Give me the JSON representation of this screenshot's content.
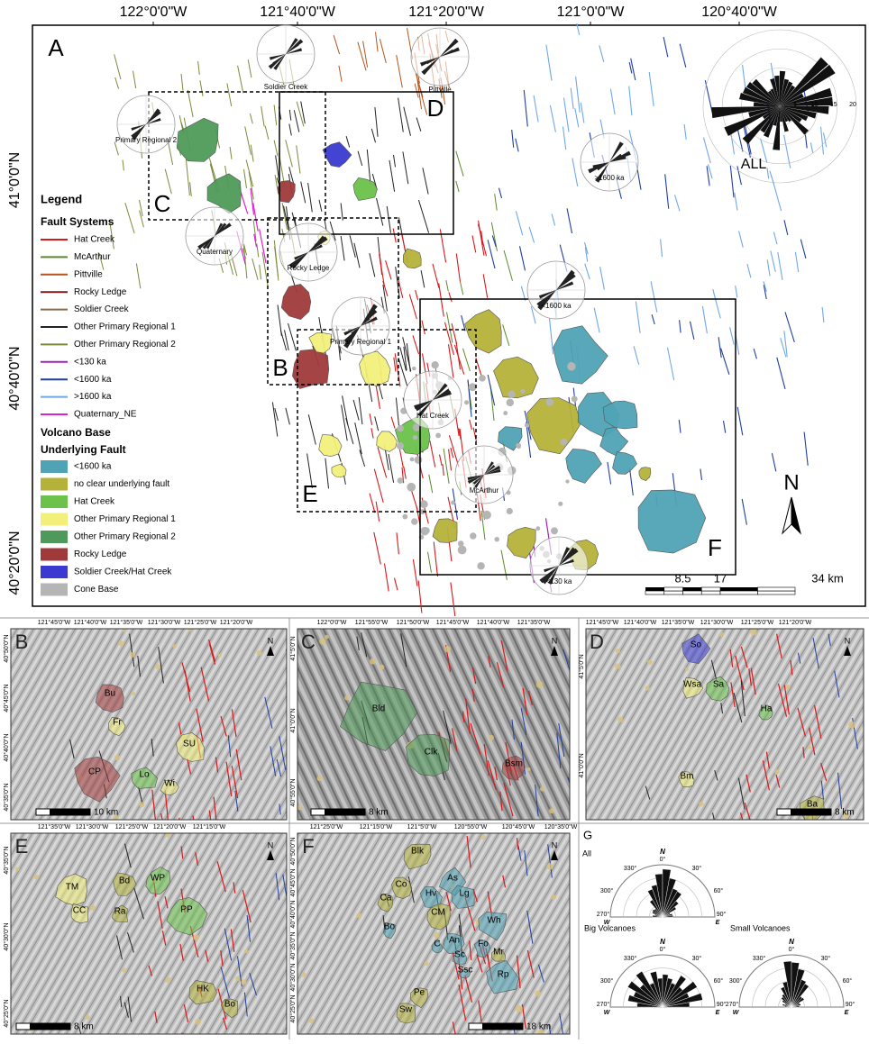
{
  "panel_a": {
    "label": "A",
    "lon_labels": [
      "122°0'0\"W",
      "121°40'0\"W",
      "121°20'0\"W",
      "121°0'0\"W",
      "120°40'0\"W"
    ],
    "lat_labels": [
      "41°0'0\"N",
      "40°40'0\"N",
      "40°20'0\"N"
    ],
    "box_labels": [
      "C",
      "D",
      "B",
      "E",
      "F"
    ],
    "rose_labels": [
      "Soldier Creek",
      "Pittville",
      "Primary Regional 2",
      ">1600 ka",
      "Quaternary",
      "Rocky Ledge",
      "<1600 ka",
      "Primary Regional 1",
      "Hat Creek",
      "McArthur",
      "<130 ka"
    ],
    "rose_all": {
      "label": "ALL",
      "ticks": [
        "5",
        "10",
        "15",
        "20"
      ]
    },
    "north": "N",
    "scale_labels": [
      "8.5",
      "17",
      "34 km"
    ],
    "legend": {
      "title": "Legend",
      "fault_heading": "Fault Systems",
      "faults": [
        {
          "name": "Hat Creek",
          "color": "#d7191c"
        },
        {
          "name": "McArthur",
          "color": "#5a8a2a"
        },
        {
          "name": "Pittville",
          "color": "#b5541c"
        },
        {
          "name": "Rocky Ledge",
          "color": "#7a1a1a"
        },
        {
          "name": "Soldier Creek",
          "color": "#8a6a4a"
        },
        {
          "name": "Other Primary Regional 1",
          "color": "#222222"
        },
        {
          "name": "Other Primary Regional 2",
          "color": "#7a8a3a"
        },
        {
          "name": "<130 ka",
          "color": "#a020c0"
        },
        {
          "name": "<1600 ka",
          "color": "#1f3f9f"
        },
        {
          "name": ">1600 ka",
          "color": "#6fa8e8"
        },
        {
          "name": "Quaternary_NE",
          "color": "#e020d0"
        }
      ],
      "volcano_heading": "Volcano Base",
      "underlying_heading": "Underlying Fault",
      "volcanoes": [
        {
          "name": "<1600 ka",
          "color": "#4fa3b5"
        },
        {
          "name": "no clear underlying fault",
          "color": "#b5b23a"
        },
        {
          "name": "Hat Creek",
          "color": "#6cc24a"
        },
        {
          "name": "Other Primary Regional 1",
          "color": "#f2f07a"
        },
        {
          "name": "Other Primary Regional 2",
          "color": "#4f9a5a"
        },
        {
          "name": "Rocky Ledge",
          "color": "#a03a3a"
        },
        {
          "name": "Soldier Creek/Hat Creek",
          "color": "#3a3ad0"
        },
        {
          "name": "Cone Base",
          "color": "#b5b5b5"
        }
      ]
    }
  },
  "panel_b": {
    "label": "B",
    "north": "N",
    "scale": "10 km",
    "lon_labels": [
      "121°45'0\"W",
      "121°40'0\"W",
      "121°35'0\"W",
      "121°30'0\"W",
      "121°25'0\"W",
      "121°20'0\"W"
    ],
    "lat_labels": [
      "40°50'0\"N",
      "40°45'0\"N",
      "40°40'0\"N",
      "40°35'0\"N"
    ],
    "volcanoes": [
      "Bu",
      "Fr",
      "SU",
      "CP",
      "Lo",
      "Wi"
    ]
  },
  "panel_c": {
    "label": "C",
    "north": "N",
    "scale": "8 km",
    "lon_labels": [
      "122°0'0\"W",
      "121°55'0\"W",
      "121°50'0\"W",
      "121°45'0\"W",
      "121°40'0\"W",
      "121°35'0\"W"
    ],
    "lat_labels": [
      "41°5'0\"N",
      "41°0'0\"N",
      "40°55'0\"N"
    ],
    "volcanoes": [
      "Bld",
      "Clk",
      "Bsm"
    ]
  },
  "panel_d": {
    "label": "D",
    "north": "N",
    "scale": "8 km",
    "lon_labels": [
      "121°45'0\"W",
      "121°40'0\"W",
      "121°35'0\"W",
      "121°30'0\"W",
      "121°25'0\"W",
      "121°20'0\"W"
    ],
    "lat_labels": [
      "41°5'0\"N",
      "41°0'0\"N"
    ],
    "volcanoes": [
      "So",
      "Wsa",
      "Sa",
      "Ha",
      "Bm",
      "Ba"
    ]
  },
  "panel_e": {
    "label": "E",
    "north": "N",
    "scale": "8 km",
    "lon_labels": [
      "121°35'0\"W",
      "121°30'0\"W",
      "121°25'0\"W",
      "121°20'0\"W",
      "121°15'0\"W"
    ],
    "lat_labels": [
      "40°35'0\"N",
      "40°30'0\"N",
      "40°25'0\"N"
    ],
    "volcanoes": [
      "TM",
      "CC",
      "Bd",
      "WP",
      "Ra",
      "PP",
      "HK",
      "Bo"
    ]
  },
  "panel_f": {
    "label": "F",
    "north": "N",
    "scale": "18 km",
    "lon_labels": [
      "121°25'0\"W",
      "121°15'0\"W",
      "121°5'0\"W",
      "120°55'0\"W",
      "120°45'0\"W",
      "120°35'0\"W"
    ],
    "lat_labels": [
      "40°50'0\"N",
      "40°45'0\"N",
      "40°40'0\"N",
      "40°35'0\"N",
      "40°30'0\"N",
      "40°25'0\"N"
    ],
    "volcanoes": [
      "Blk",
      "Co",
      "Ca",
      "Hv",
      "As",
      "Lg",
      "CM",
      "Wh",
      "Bo",
      "An",
      "Fo",
      "C",
      "Mr",
      "Sc",
      "Ssc",
      "Rp",
      "Pe",
      "Sw"
    ]
  },
  "panel_g": {
    "label": "G",
    "roses": [
      {
        "title": "All",
        "angle_labels": [
          "N",
          "0°",
          "330°",
          "30°",
          "300°",
          "60°",
          "270°",
          "90°",
          "W",
          "E"
        ]
      },
      {
        "title": "Big Volcanoes",
        "angle_labels": [
          "N",
          "0°",
          "330°",
          "30°",
          "300°",
          "60°",
          "270°",
          "90°",
          "W",
          "E"
        ]
      },
      {
        "title": "Small Volcanoes",
        "angle_labels": [
          "N",
          "0°",
          "330°",
          "30°",
          "300°",
          "60°",
          "270°",
          "90°",
          "W",
          "E"
        ]
      }
    ]
  }
}
